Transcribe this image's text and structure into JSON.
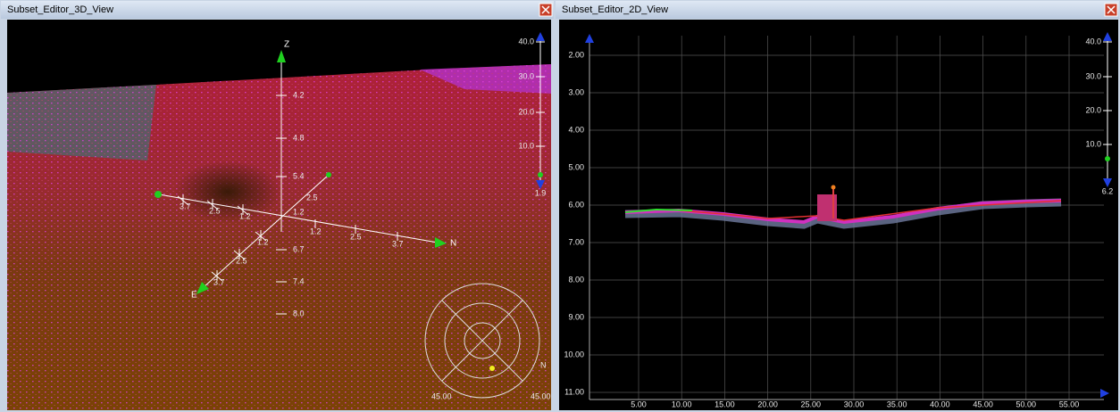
{
  "left": {
    "title": "Subset_Editor_3D_View",
    "axes": {
      "z": "Z",
      "e": "E",
      "n": "N"
    },
    "depth_labels": [
      "4.2",
      "4.8",
      "5.4",
      "6.7",
      "7.4",
      "8.0"
    ],
    "e_labels": [
      "3.7",
      "2.5",
      "1.2",
      "1.2",
      "2.5",
      "3.7"
    ],
    "n_labels": [
      "1.2",
      "2.5",
      "3.7"
    ],
    "center_labels": [
      "2.5",
      "1.2"
    ],
    "slider": {
      "scale": [
        "40.0",
        "30.0",
        "20.0",
        "10.0"
      ],
      "current": "1.9"
    },
    "compass": {
      "north": "N",
      "left_value": "45.00",
      "right_value": "45.00"
    }
  },
  "right": {
    "title": "Subset_Editor_2D_View",
    "y_ticks": [
      "2.00",
      "3.00",
      "4.00",
      "5.00",
      "6.00",
      "7.00",
      "8.00",
      "9.00",
      "10.00",
      "11.00"
    ],
    "x_ticks": [
      "5.00",
      "10.00",
      "15.00",
      "20.00",
      "25.00",
      "30.00",
      "35.00",
      "40.00",
      "45.00",
      "50.00",
      "55.00"
    ],
    "slider": {
      "scale": [
        "40.0",
        "30.0",
        "20.0",
        "10.0"
      ],
      "current": "6.2"
    }
  }
}
